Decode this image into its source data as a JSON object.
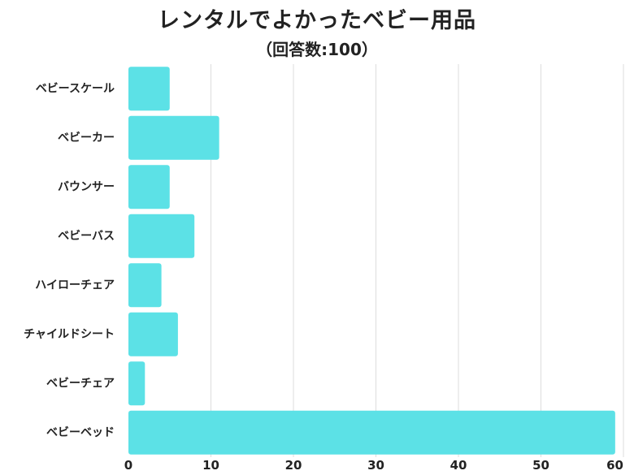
{
  "title": "レンタルでよかったベビー用品",
  "subtitle": "（回答数:100）",
  "colors": {
    "bar": "#5ce1e6",
    "grid": "#dddddd",
    "text": "#222222"
  },
  "chart_data": {
    "type": "bar",
    "orientation": "horizontal",
    "title": "レンタルでよかったベビー用品",
    "subtitle": "（回答数:100）",
    "categories": [
      "ベビースケール",
      "ベビーカー",
      "バウンサー",
      "ベビーバス",
      "ハイローチェア",
      "チャイルドシート",
      "ベビーチェア",
      "ベビーベッド"
    ],
    "values": [
      5,
      11,
      5,
      8,
      4,
      6,
      2,
      59
    ],
    "xlim": [
      0,
      60
    ],
    "xticks": [
      0,
      10,
      20,
      30,
      40,
      50,
      60
    ],
    "grid": true,
    "legend": "none"
  }
}
